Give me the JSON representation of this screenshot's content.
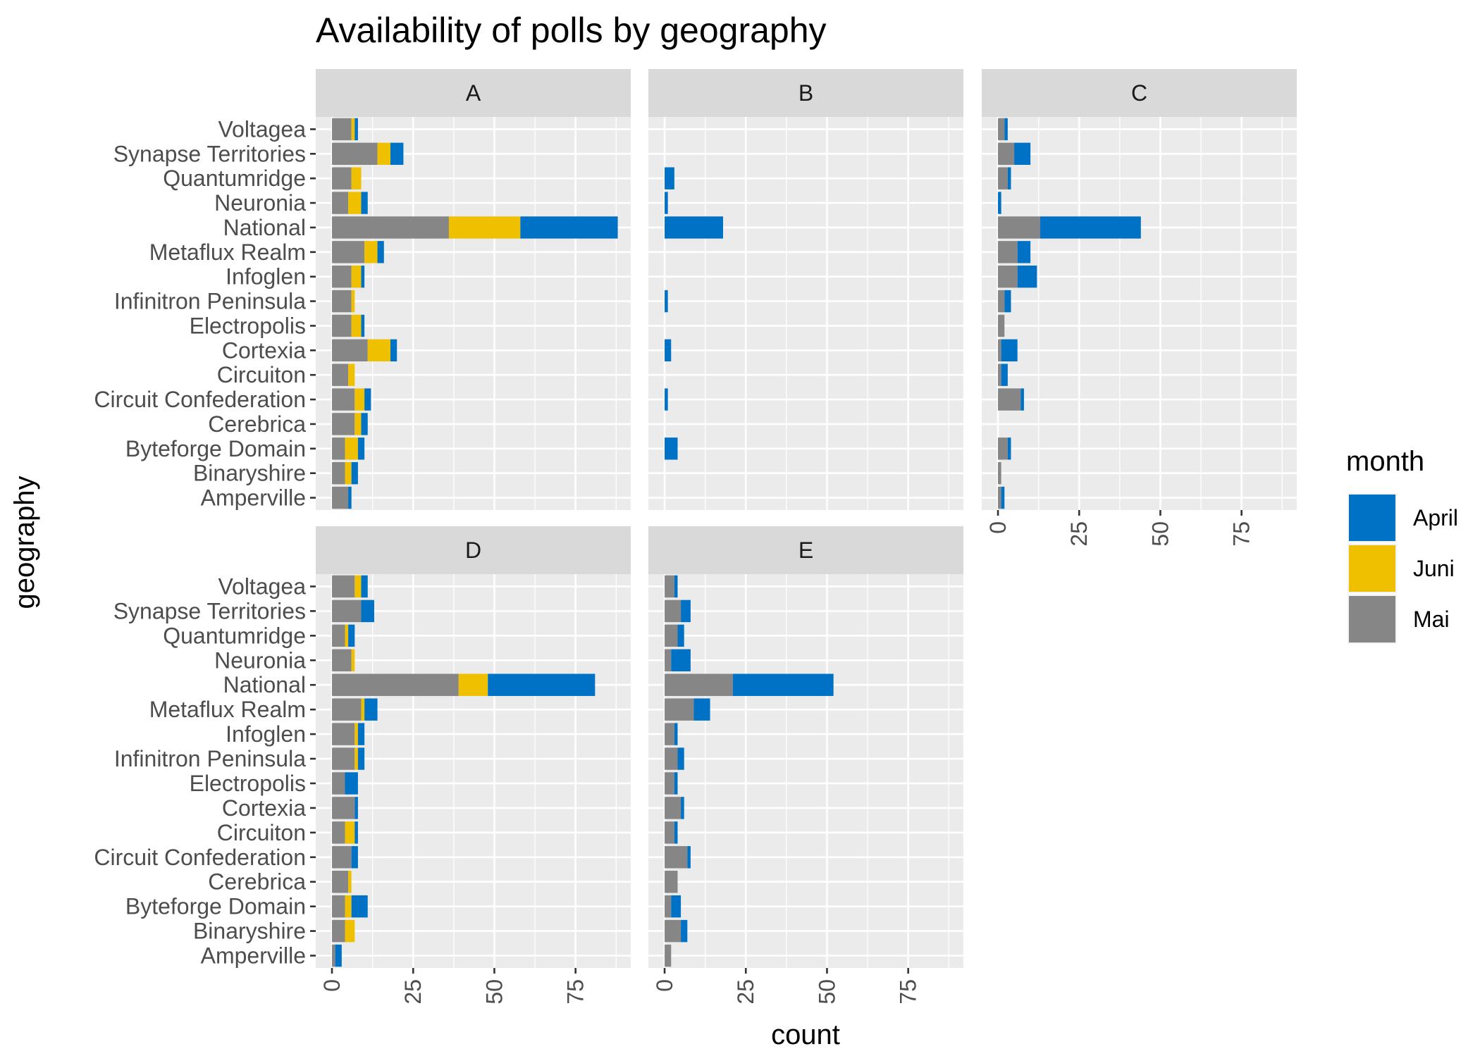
{
  "chart_data": {
    "type": "bar",
    "orientation": "horizontal",
    "stacked": true,
    "title": "Availability of polls by geography",
    "xlabel": "count",
    "ylabel": "geography",
    "xlim": [
      -5,
      92
    ],
    "xticks": [
      0,
      25,
      50,
      75
    ],
    "grid": true,
    "legend": {
      "title": "month",
      "position": "right"
    },
    "categories": [
      "Voltagea",
      "Synapse Territories",
      "Quantumridge",
      "Neuronia",
      "National",
      "Metaflux Realm",
      "Infoglen",
      "Infinitron Peninsula",
      "Electropolis",
      "Cortexia",
      "Circuiton",
      "Circuit Confederation",
      "Cerebrica",
      "Byteforge Domain",
      "Binaryshire",
      "Amperville"
    ],
    "stack_order": [
      "Mai",
      "Juni",
      "April"
    ],
    "series_colors": {
      "April": "#0072C6",
      "Juni": "#EFC000",
      "Mai": "#868686"
    },
    "panels": [
      {
        "label": "A",
        "series": [
          {
            "name": "Mai",
            "values": [
              6,
              14,
              6,
              5,
              36,
              10,
              6,
              6,
              6,
              11,
              5,
              7,
              7,
              4,
              4,
              5
            ]
          },
          {
            "name": "Juni",
            "values": [
              1,
              4,
              3,
              4,
              22,
              4,
              3,
              1,
              3,
              7,
              2,
              3,
              2,
              4,
              2,
              0
            ]
          },
          {
            "name": "April",
            "values": [
              1,
              4,
              0,
              2,
              30,
              2,
              1,
              0,
              1,
              2,
              0,
              2,
              2,
              2,
              2,
              1
            ]
          }
        ]
      },
      {
        "label": "B",
        "series": [
          {
            "name": "Mai",
            "values": [
              0,
              0,
              0,
              0,
              0,
              0,
              0,
              0,
              0,
              0,
              0,
              0,
              0,
              0,
              0,
              0
            ]
          },
          {
            "name": "Juni",
            "values": [
              0,
              0,
              0,
              0,
              0,
              0,
              0,
              0,
              0,
              0,
              0,
              0,
              0,
              0,
              0,
              0
            ]
          },
          {
            "name": "April",
            "values": [
              0,
              0,
              3,
              1,
              18,
              0,
              0,
              1,
              0,
              2,
              0,
              1,
              0,
              4,
              0,
              0
            ]
          }
        ]
      },
      {
        "label": "C",
        "series": [
          {
            "name": "Mai",
            "values": [
              2,
              5,
              3,
              0,
              13,
              6,
              6,
              2,
              2,
              1,
              1,
              7,
              0,
              3,
              1,
              1
            ]
          },
          {
            "name": "Juni",
            "values": [
              0,
              0,
              0,
              0,
              0,
              0,
              0,
              0,
              0,
              0,
              0,
              0,
              0,
              0,
              0,
              0
            ]
          },
          {
            "name": "April",
            "values": [
              1,
              5,
              1,
              1,
              31,
              4,
              6,
              2,
              0,
              5,
              2,
              1,
              0,
              1,
              0,
              1
            ]
          }
        ]
      },
      {
        "label": "D",
        "series": [
          {
            "name": "Mai",
            "values": [
              7,
              9,
              4,
              6,
              39,
              9,
              7,
              7,
              4,
              7,
              4,
              6,
              5,
              4,
              4,
              1
            ]
          },
          {
            "name": "Juni",
            "values": [
              2,
              0,
              1,
              1,
              9,
              1,
              1,
              1,
              0,
              0,
              3,
              0,
              1,
              2,
              3,
              0
            ]
          },
          {
            "name": "April",
            "values": [
              2,
              4,
              2,
              0,
              33,
              4,
              2,
              2,
              4,
              1,
              1,
              2,
              0,
              5,
              0,
              2
            ]
          }
        ]
      },
      {
        "label": "E",
        "series": [
          {
            "name": "Mai",
            "values": [
              3,
              5,
              4,
              2,
              21,
              9,
              3,
              4,
              3,
              5,
              3,
              7,
              4,
              2,
              5,
              2
            ]
          },
          {
            "name": "Juni",
            "values": [
              0,
              0,
              0,
              0,
              0,
              0,
              0,
              0,
              0,
              0,
              0,
              0,
              0,
              0,
              0,
              0
            ]
          },
          {
            "name": "April",
            "values": [
              1,
              3,
              2,
              6,
              31,
              5,
              1,
              2,
              1,
              1,
              1,
              1,
              0,
              3,
              2,
              0
            ]
          }
        ]
      }
    ]
  }
}
